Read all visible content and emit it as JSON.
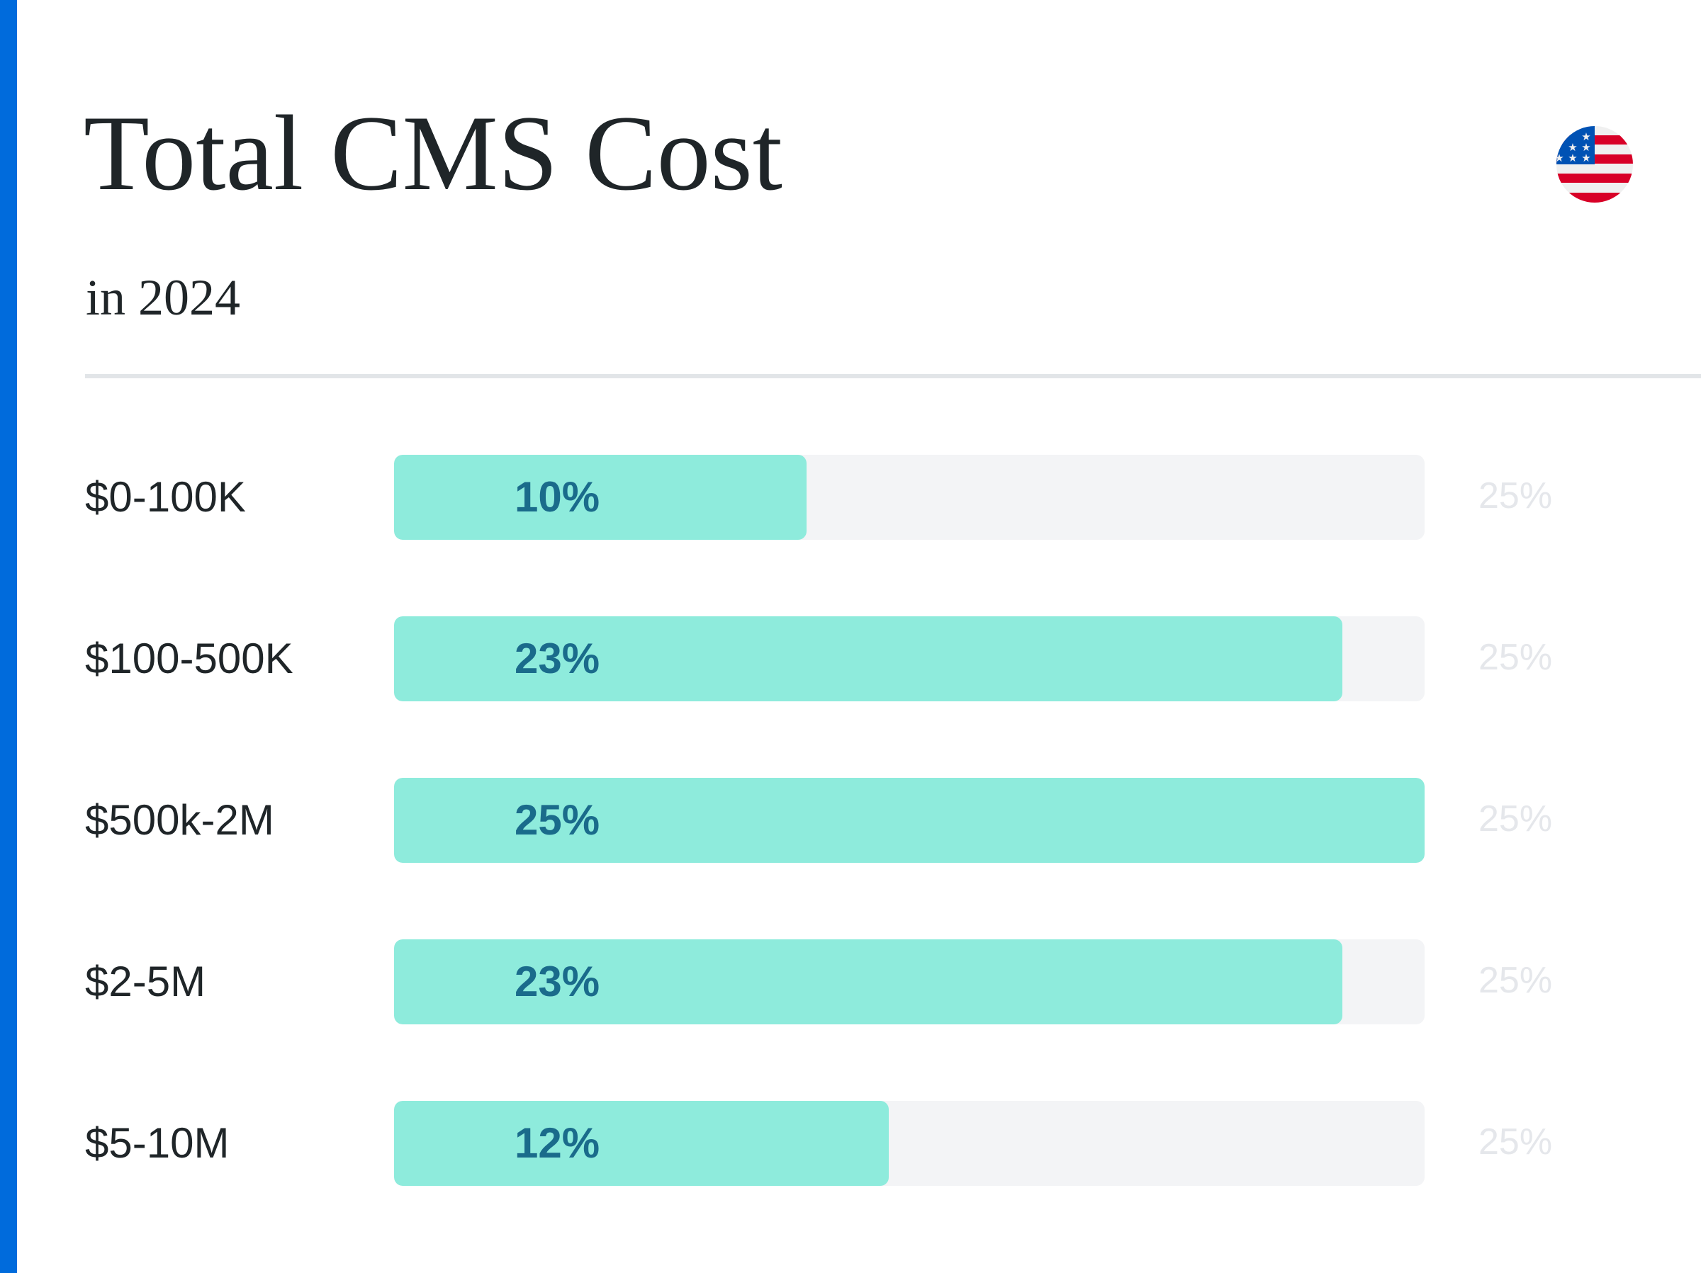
{
  "header": {
    "title": "Total CMS Cost",
    "subtitle": "in 2024",
    "flag_icon": "us-flag-icon"
  },
  "colors": {
    "accent": "#006bdc",
    "bar_fill": "#8eebdc",
    "bar_track": "#f3f4f6",
    "value_text": "#1a6b8b",
    "max_text": "#e5e7eb"
  },
  "chart_data": {
    "type": "bar",
    "orientation": "horizontal",
    "title": "Total CMS Cost",
    "subtitle": "in 2024",
    "categories": [
      "$0-100K",
      "$100-500K",
      "$500k-2M",
      "$2-5M",
      "$5-10M"
    ],
    "values": [
      10,
      23,
      25,
      23,
      12
    ],
    "value_labels": [
      "10%",
      "23%",
      "25%",
      "23%",
      "12%"
    ],
    "max_value": 25,
    "max_labels": [
      "25%",
      "25%",
      "25%",
      "25%",
      "25%"
    ],
    "unit": "%",
    "xlabel": "",
    "ylabel": "",
    "xlim": [
      0,
      25
    ],
    "grid": false,
    "legend": "none"
  }
}
